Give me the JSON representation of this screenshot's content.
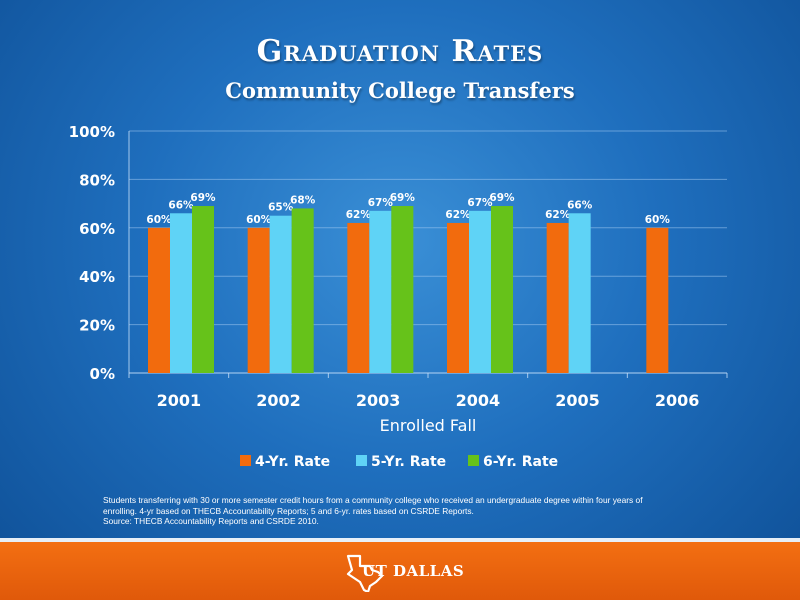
{
  "slide": {
    "title": "Graduation Rates",
    "subtitle": "Community College Transfers",
    "notes": [
      "Students transferring with 30 or more semester credit hours from a community college who received an undergraduate degree within four years of",
      "enrolling. 4-yr based on THECB Accountability Reports; 5 and 6-yr. rates based on CSRDE Reports.",
      "Source: THECB Accountability Reports and CSRDE 2010."
    ],
    "logo_text": "UT DALLAS"
  },
  "colors": {
    "background": "#1f6fbe",
    "footer": "#f06a10",
    "four_yr": "#f26b0d",
    "five_yr": "#5fd3f6",
    "six_yr": "#66c21a"
  },
  "chart_data": {
    "type": "bar",
    "title": "",
    "xlabel": "Enrolled Fall",
    "ylabel": "",
    "categories": [
      "2001",
      "2002",
      "2003",
      "2004",
      "2005",
      "2006"
    ],
    "ylim": [
      0,
      100
    ],
    "yticks": [
      "0%",
      "20%",
      "40%",
      "60%",
      "80%",
      "100%"
    ],
    "ytick_values": [
      0,
      20,
      40,
      60,
      80,
      100
    ],
    "grid": true,
    "legend_position": "bottom",
    "series": [
      {
        "name": "4-Yr. Rate",
        "color": "#f26b0d",
        "values": [
          60,
          60,
          62,
          62,
          62,
          60
        ],
        "labels": [
          "60%",
          "60%",
          "62%",
          "62%",
          "62%",
          "60%"
        ]
      },
      {
        "name": "5-Yr. Rate",
        "color": "#5fd3f6",
        "values": [
          66,
          65,
          67,
          67,
          66,
          null
        ],
        "labels": [
          "66%",
          "65%",
          "67%",
          "67%",
          "66%",
          null
        ]
      },
      {
        "name": "6-Yr. Rate",
        "color": "#66c21a",
        "values": [
          69,
          68,
          69,
          69,
          null,
          null
        ],
        "labels": [
          "69%",
          "68%",
          "69%",
          "69%",
          null,
          null
        ]
      }
    ]
  }
}
